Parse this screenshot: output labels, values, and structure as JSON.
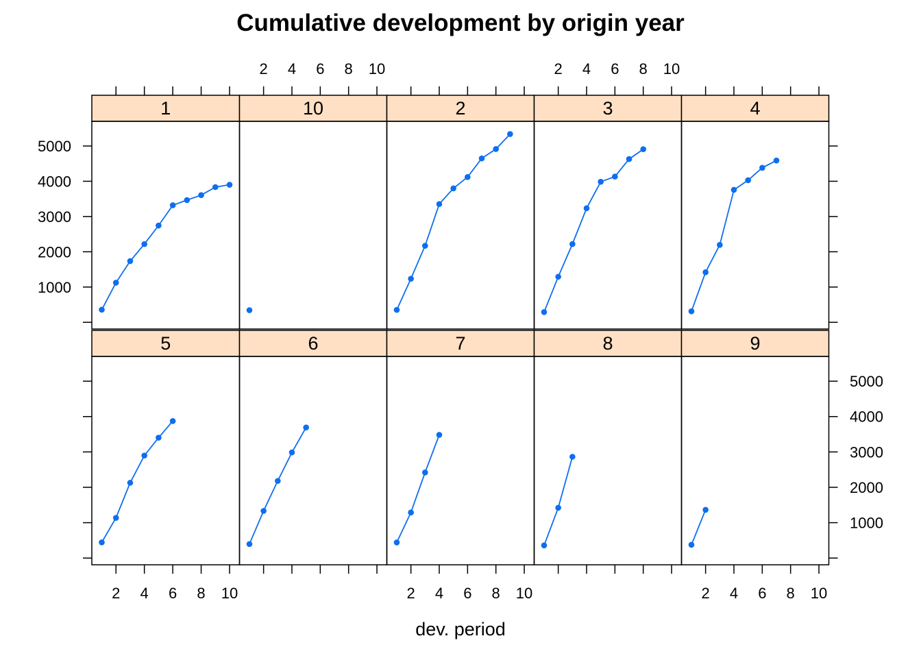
{
  "chart_data": {
    "type": "line",
    "title": "Cumulative development by origin year",
    "xlabel": "dev. period",
    "ylabel": "",
    "xlim": [
      0.3,
      10.7
    ],
    "ylim": [
      -190,
      5700
    ],
    "x_ticks": [
      2,
      4,
      6,
      8,
      10
    ],
    "y_ticks": [
      1000,
      2000,
      3000,
      4000,
      5000
    ],
    "grid": false,
    "legend": "none",
    "colors": {
      "series": "#0e6ef0",
      "strip": "#ffe0c4",
      "frame": "#000000"
    },
    "panels": [
      {
        "name": "1",
        "x": [
          1,
          2,
          3,
          4,
          5,
          6,
          7,
          8,
          9,
          10
        ],
        "values": [
          357,
          1124,
          1735,
          2218,
          2745,
          3319,
          3466,
          3606,
          3834,
          3901
        ]
      },
      {
        "name": "10",
        "x": [
          1
        ],
        "values": [
          344
        ]
      },
      {
        "name": "2",
        "x": [
          1,
          2,
          3,
          4,
          5,
          6,
          7,
          8,
          9
        ],
        "values": [
          352,
          1236,
          2170,
          3353,
          3799,
          4120,
          4648,
          4914,
          5339
        ]
      },
      {
        "name": "3",
        "x": [
          1,
          2,
          3,
          4,
          5,
          6,
          7,
          8
        ],
        "values": [
          290,
          1292,
          2219,
          3235,
          3986,
          4133,
          4629,
          4909
        ]
      },
      {
        "name": "4",
        "x": [
          1,
          2,
          3,
          4,
          5,
          6,
          7
        ],
        "values": [
          311,
          1419,
          2195,
          3757,
          4030,
          4382,
          4588
        ]
      },
      {
        "name": "5",
        "x": [
          1,
          2,
          3,
          4,
          5,
          6
        ],
        "values": [
          443,
          1136,
          2128,
          2898,
          3403,
          3873
        ]
      },
      {
        "name": "6",
        "x": [
          1,
          2,
          3,
          4,
          5
        ],
        "values": [
          396,
          1333,
          2181,
          2986,
          3692
        ]
      },
      {
        "name": "7",
        "x": [
          1,
          2,
          3,
          4
        ],
        "values": [
          441,
          1288,
          2420,
          3483
        ]
      },
      {
        "name": "8",
        "x": [
          1,
          2,
          3
        ],
        "values": [
          359,
          1421,
          2864
        ]
      },
      {
        "name": "9",
        "x": [
          1,
          2
        ],
        "values": [
          376,
          1363
        ]
      }
    ]
  }
}
